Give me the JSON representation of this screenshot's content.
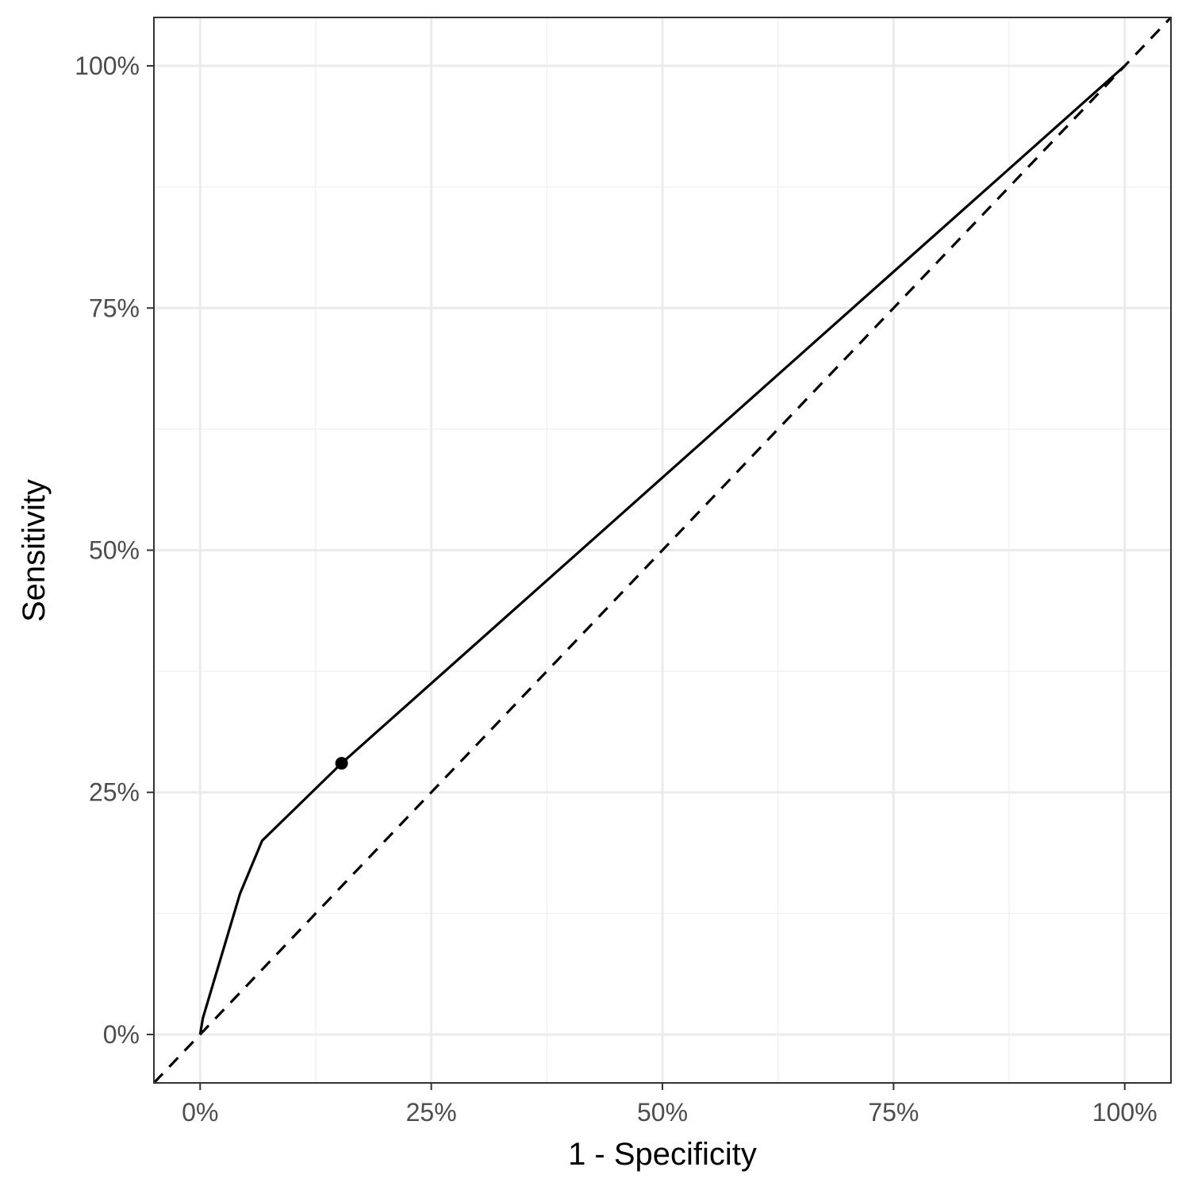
{
  "chart_data": {
    "type": "line",
    "xlabel": "1 - Specificity",
    "ylabel": "Sensitivity",
    "xlim": [
      -0.05,
      1.05
    ],
    "ylim": [
      -0.05,
      1.05
    ],
    "x_ticks": [
      0,
      0.25,
      0.5,
      0.75,
      1.0
    ],
    "x_tick_labels": [
      "0%",
      "25%",
      "50%",
      "75%",
      "100%"
    ],
    "y_ticks": [
      0,
      0.25,
      0.5,
      0.75,
      1.0
    ],
    "y_tick_labels": [
      "0%",
      "25%",
      "50%",
      "75%",
      "100%"
    ],
    "grid": true,
    "series": [
      {
        "style": "solid",
        "color": "#000000",
        "x": [
          0,
          0.003,
          0.043,
          0.067,
          0.153,
          1.0
        ],
        "y": [
          0,
          0.017,
          0.145,
          0.2,
          0.28,
          1.0
        ]
      },
      {
        "style": "dashed",
        "color": "#000000",
        "x": [
          -0.05,
          1.05
        ],
        "y": [
          -0.05,
          1.05
        ]
      }
    ],
    "points": [
      {
        "x": 0.153,
        "y": 0.28
      }
    ]
  },
  "colors": {
    "panel_border": "#333333",
    "grid_major": "#ebebeb",
    "grid_minor": "#f2f2f2",
    "tick_text": "#4d4d4d"
  }
}
